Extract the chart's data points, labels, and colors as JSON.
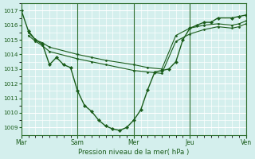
{
  "bg_color": "#d4efed",
  "grid_color": "#ffffff",
  "line_color": "#1a5c1a",
  "xlabel": "Pression niveau de la mer( hPa )",
  "ylim": [
    1008.5,
    1017.5
  ],
  "yticks": [
    1009,
    1010,
    1011,
    1012,
    1013,
    1014,
    1015,
    1016,
    1017
  ],
  "day_ticks": [
    0,
    4,
    8,
    12,
    16
  ],
  "day_labels": [
    "Mar",
    "Sam",
    "Mer",
    "Jeu",
    "Ven"
  ],
  "s1x": [
    0,
    0.5,
    1.0,
    1.5,
    2.0,
    2.5,
    3.0,
    3.5,
    4.0,
    4.5,
    5.0,
    5.5,
    6.0,
    6.5,
    7.0,
    7.5,
    8.0,
    8.5,
    9.0,
    9.5,
    10.0,
    10.5,
    11.0,
    11.5,
    12.0,
    12.5,
    13.0,
    13.5,
    14.0,
    15.0,
    15.5,
    16.0
  ],
  "s1y": [
    1017.0,
    1015.6,
    1015.0,
    1014.7,
    1013.3,
    1013.8,
    1013.3,
    1013.1,
    1011.5,
    1010.5,
    1010.1,
    1009.5,
    1009.1,
    1008.9,
    1008.8,
    1009.0,
    1009.5,
    1010.2,
    1011.6,
    1012.8,
    1012.9,
    1013.0,
    1013.5,
    1015.0,
    1015.8,
    1016.0,
    1016.2,
    1016.2,
    1016.5,
    1016.5,
    1016.6,
    1016.7
  ],
  "s2x": [
    0.5,
    1.0,
    1.5,
    2.0,
    4.0,
    5.0,
    6.0,
    8.0,
    9.0,
    10.0,
    11.0,
    12.0,
    13.0,
    14.0,
    15.0,
    15.5,
    16.0
  ],
  "s2y": [
    1015.5,
    1015.0,
    1014.8,
    1014.5,
    1014.0,
    1013.8,
    1013.6,
    1013.3,
    1013.1,
    1013.0,
    1015.3,
    1015.8,
    1016.0,
    1016.1,
    1016.0,
    1016.1,
    1016.3
  ],
  "s3x": [
    0.5,
    1.0,
    1.5,
    2.0,
    4.0,
    5.0,
    6.0,
    8.0,
    9.0,
    10.0,
    11.0,
    12.0,
    13.0,
    14.0,
    15.0,
    15.5,
    16.0
  ],
  "s3y": [
    1015.3,
    1014.9,
    1014.6,
    1014.2,
    1013.7,
    1013.5,
    1013.3,
    1012.9,
    1012.8,
    1012.7,
    1014.9,
    1015.4,
    1015.7,
    1015.9,
    1015.8,
    1015.9,
    1016.1
  ]
}
